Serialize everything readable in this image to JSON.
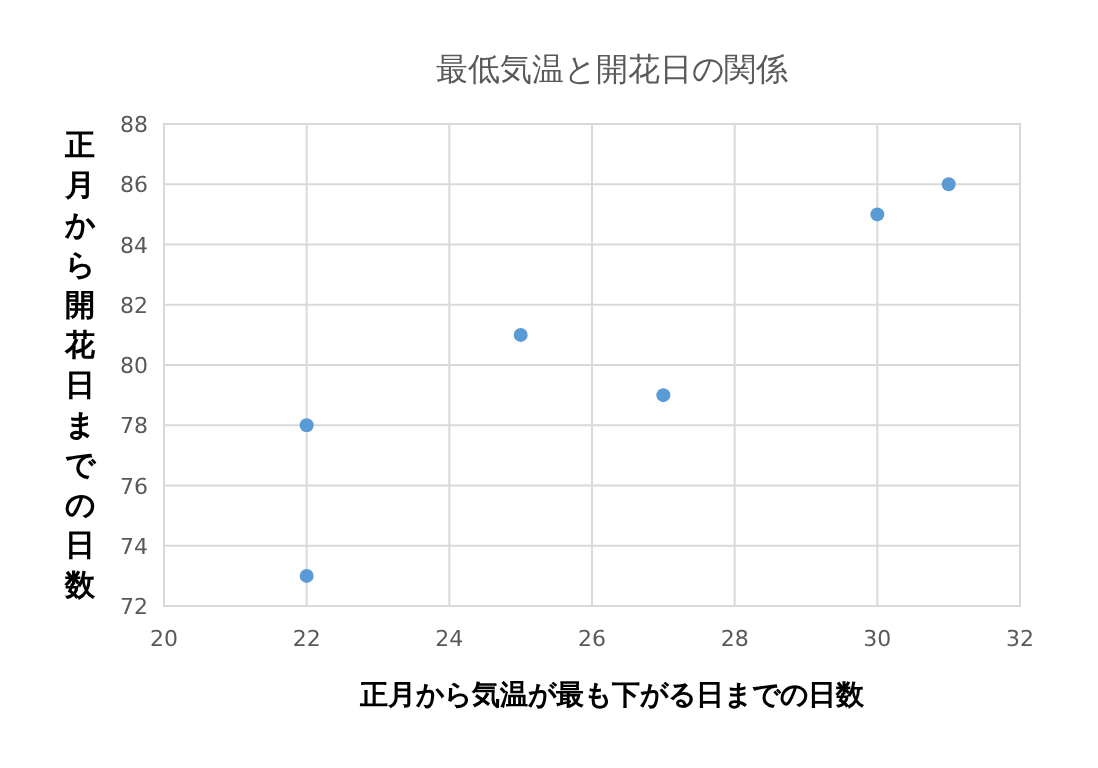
{
  "chart_data": {
    "type": "scatter",
    "title": "最低気温と開花日の関係",
    "xlabel": "正月から気温が最も下がる日までの日数",
    "ylabel": "正月から開花日までの日数",
    "x": [
      22,
      22,
      25,
      27,
      30,
      31
    ],
    "series": [
      {
        "color": "#5b9bd5",
        "values": [
          78,
          73,
          81,
          79,
          85,
          86
        ]
      }
    ],
    "xlim": [
      20,
      32
    ],
    "xticks": [
      20,
      22,
      24,
      26,
      28,
      30,
      32
    ],
    "ylim": [
      72,
      88
    ],
    "yticks": [
      72,
      74,
      76,
      78,
      80,
      82,
      84,
      86,
      88
    ],
    "grid": true,
    "marker": "circle"
  }
}
